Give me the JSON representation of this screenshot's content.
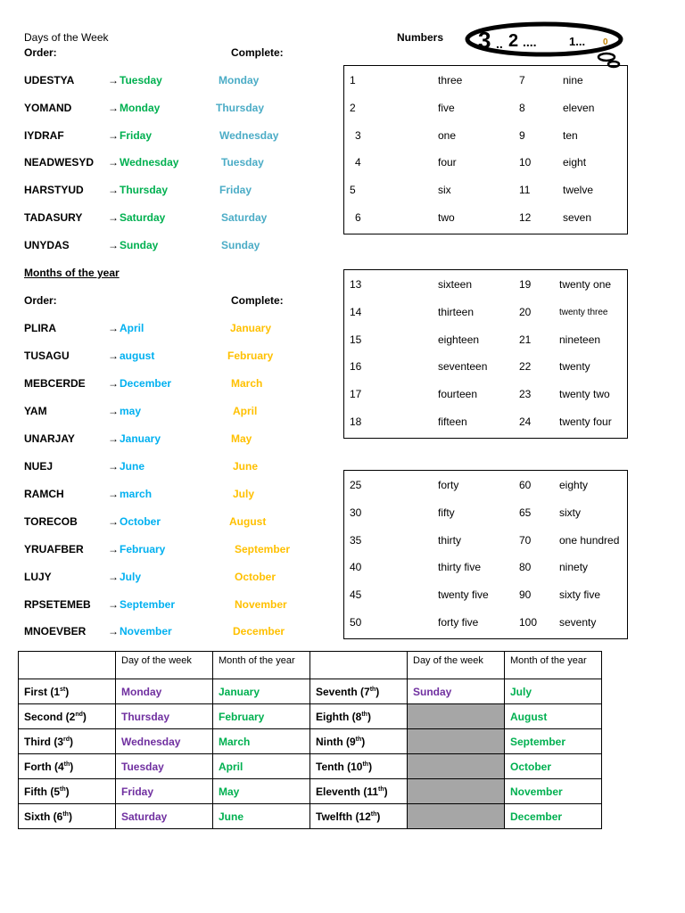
{
  "days": {
    "title": "Days of the Week",
    "order_label": "Order:",
    "complete_label": "Complete:",
    "rows": [
      {
        "scrambled": "UDESTYA",
        "answer": "Tuesday",
        "complete": "Monday"
      },
      {
        "scrambled": "YOMAND",
        "answer": "Monday",
        "complete": "Thursday"
      },
      {
        "scrambled": "IYDRAF",
        "answer": "Friday",
        "complete": "Wednesday"
      },
      {
        "scrambled": "NEADWESYD",
        "answer": "Wednesday",
        "complete": "Tuesday"
      },
      {
        "scrambled": "HARSTYUD",
        "answer": "Thursday",
        "complete": "Friday"
      },
      {
        "scrambled": "TADASURY",
        "answer": "Saturday",
        "complete": "Saturday"
      },
      {
        "scrambled": "UNYDAS",
        "answer": "Sunday",
        "complete": "Sunday"
      }
    ]
  },
  "months": {
    "title": "Months of the year",
    "order_label": "Order:",
    "complete_label": "Complete:",
    "rows": [
      {
        "scrambled": "PLIRA",
        "answer": "April",
        "complete": "January"
      },
      {
        "scrambled": "TUSAGU",
        "answer": "august",
        "complete": "February"
      },
      {
        "scrambled": "MEBCERDE",
        "answer": "December",
        "complete": "March"
      },
      {
        "scrambled": "YAM",
        "answer": "may",
        "complete": "April"
      },
      {
        "scrambled": "UNARJAY",
        "answer": "January",
        "complete": "May"
      },
      {
        "scrambled": "NUEJ",
        "answer": "June",
        "complete": "June"
      },
      {
        "scrambled": "RAMCH",
        "answer": " march",
        "complete": "July"
      },
      {
        "scrambled": "TORECOB",
        "answer": "October",
        "complete": "August"
      },
      {
        "scrambled": "YRUAFBER",
        "answer": "February",
        "complete": "September"
      },
      {
        "scrambled": "LUJY",
        "answer": "July",
        "complete": "October"
      },
      {
        "scrambled": "RPSETEMEB",
        "answer": "September",
        "complete": "November"
      },
      {
        "scrambled": "MNOEVBER",
        "answer": "November",
        "complete": "December"
      }
    ]
  },
  "arrow": "→",
  "numbers": {
    "title": "Numbers",
    "logo_text": "3...2....1...0",
    "boxes": [
      [
        [
          "1",
          "three",
          "7",
          "nine"
        ],
        [
          "2",
          "five",
          "8",
          "eleven"
        ],
        [
          "3",
          "one",
          "9",
          "ten"
        ],
        [
          "4",
          "four",
          "10",
          "eight"
        ],
        [
          "5",
          "six",
          "11",
          "twelve"
        ],
        [
          "6",
          "two",
          "12",
          "seven"
        ]
      ],
      [
        [
          "13",
          "sixteen",
          "19",
          "twenty one"
        ],
        [
          "14",
          "thirteen",
          "20",
          "twenty three"
        ],
        [
          "15",
          "eighteen",
          "21",
          "nineteen"
        ],
        [
          "16",
          "seventeen",
          "22",
          "twenty"
        ],
        [
          "17",
          "fourteen",
          "23",
          "twenty two"
        ],
        [
          "18",
          "fifteen",
          "24",
          "twenty four"
        ]
      ],
      [
        [
          "25",
          "forty",
          "60",
          "eighty"
        ],
        [
          "30",
          "fifty",
          "65",
          "sixty"
        ],
        [
          "35",
          "thirty",
          "70",
          "one hundred"
        ],
        [
          "40",
          "thirty five",
          "80",
          "ninety"
        ],
        [
          "45",
          "twenty five",
          "90",
          "sixty five"
        ],
        [
          "50",
          "forty five",
          "100",
          "seventy"
        ]
      ]
    ]
  },
  "ordinal_table": {
    "headers": [
      "",
      "Day of the week",
      "Month of the year",
      "",
      "Day of the week",
      "Month of the year"
    ],
    "rows": [
      {
        "o1": "First (1",
        "s1": "st",
        "d1": "Monday",
        "m1": "January",
        "o2": "Seventh (7",
        "s2": "th",
        "d2": "Sunday",
        "m2": "July"
      },
      {
        "o1": "Second (2",
        "s1": "nd",
        "d1": "Thursday",
        "m1": "February",
        "o2": "Eighth (8",
        "s2": "th",
        "d2": "",
        "m2": "August"
      },
      {
        "o1": "Third (3",
        "s1": "rd",
        "d1": "Wednesday",
        "m1": "March",
        "o2": "Ninth (9",
        "s2": "th",
        "d2": "",
        "m2": "September"
      },
      {
        "o1": "Forth (4",
        "s1": "th",
        "d1": "Tuesday",
        "m1": "April",
        "o2": "Tenth (10",
        "s2": "th",
        "d2": "",
        "m2": "October"
      },
      {
        "o1": "Fifth (5",
        "s1": "th",
        "d1": "Friday",
        "m1": "May",
        "o2": "Eleventh (11",
        "s2": "th",
        "d2": "",
        "m2": "November"
      },
      {
        "o1": "Sixth (6",
        "s1": "th",
        "d1": "Saturday",
        "m1": "June",
        "o2": "Twelfth (12",
        "s2": "th",
        "d2": "",
        "m2": "December"
      }
    ]
  },
  "colors": {
    "answer_day": "#00b050",
    "complete_day": "#4bacc6",
    "answer_month": "#00b0f0",
    "complete_month": "#ffc000",
    "table_day": "#7030a0",
    "table_month": "#00b050",
    "shaded": "#a6a6a6"
  }
}
